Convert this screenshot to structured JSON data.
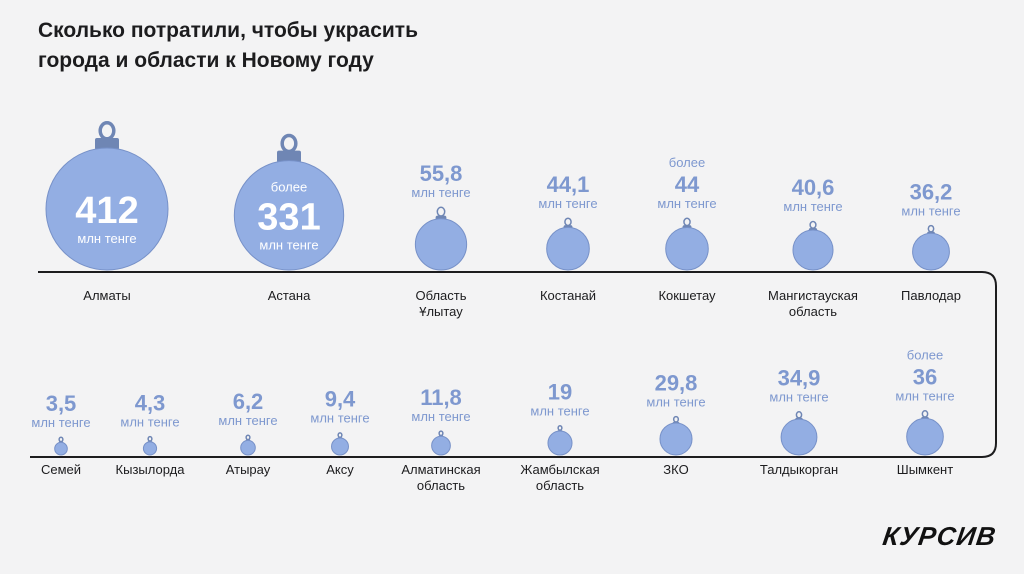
{
  "title_lines": [
    "Сколько потратили, чтобы украсить",
    "города и области к Новому году"
  ],
  "logo": "КУРСИВ",
  "colors": {
    "ornament": "#93aee3",
    "ornament_dark": "#7791c8",
    "cap": "#6f86b4",
    "value_text": "#7e98cf",
    "label_text": "#1c1c1e",
    "line": "#1c1c1e"
  },
  "chart_data": {
    "type": "bar",
    "unit": "млн тенге",
    "rows": [
      {
        "items": [
          {
            "category": "Алматы",
            "value": 412,
            "display": "412",
            "prefix": ""
          },
          {
            "category": "Астана",
            "value": 331,
            "display": "331",
            "prefix": "более"
          },
          {
            "category": "Область Ұлытау",
            "value": 55.8,
            "display": "55,8",
            "prefix": ""
          },
          {
            "category": "Костанай",
            "value": 44.1,
            "display": "44,1",
            "prefix": ""
          },
          {
            "category": "Кокшетау",
            "value": 44,
            "display": "44",
            "prefix": "более"
          },
          {
            "category": "Мангистауская область",
            "value": 40.6,
            "display": "40,6",
            "prefix": ""
          },
          {
            "category": "Павлодар",
            "value": 36.2,
            "display": "36,2",
            "prefix": ""
          }
        ]
      },
      {
        "items": [
          {
            "category": "Семей",
            "value": 3.5,
            "display": "3,5",
            "prefix": ""
          },
          {
            "category": "Кызылорда",
            "value": 4.3,
            "display": "4,3",
            "prefix": ""
          },
          {
            "category": "Атырау",
            "value": 6.2,
            "display": "6,2",
            "prefix": ""
          },
          {
            "category": "Аксу",
            "value": 9.4,
            "display": "9,4",
            "prefix": ""
          },
          {
            "category": "Алматинская область",
            "value": 11.8,
            "display": "11,8",
            "prefix": ""
          },
          {
            "category": "Жамбылская область",
            "value": 19,
            "display": "19",
            "prefix": ""
          },
          {
            "category": "ЗКО",
            "value": 29.8,
            "display": "29,8",
            "prefix": ""
          },
          {
            "category": "Талдыкорган",
            "value": 34.9,
            "display": "34,9",
            "prefix": ""
          },
          {
            "category": "Шымкент",
            "value": 36,
            "display": "36",
            "prefix": "более"
          }
        ]
      }
    ]
  }
}
